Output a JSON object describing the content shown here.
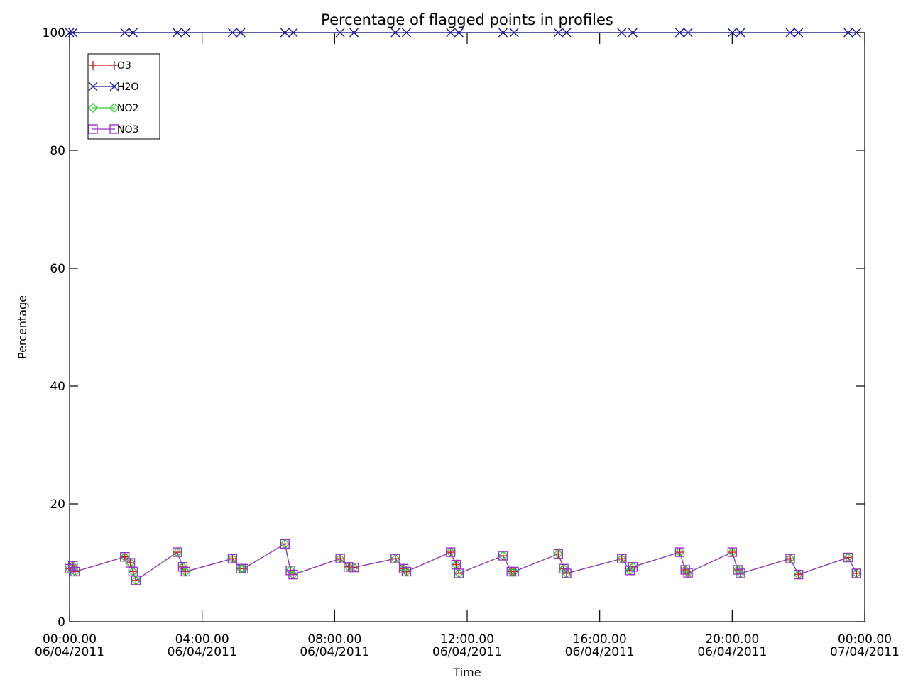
{
  "chart_data": {
    "type": "line",
    "title": "Percentage of flagged points in profiles",
    "xlabel": "Time",
    "ylabel": "Percentage",
    "ylim": [
      0,
      100
    ],
    "xlim": [
      "2011-04-06T00:00:00",
      "2011-04-07T00:00:00"
    ],
    "grid": false,
    "legend_position": "top-left",
    "y_ticks": [
      "0",
      "20",
      "40",
      "60",
      "80",
      "100"
    ],
    "x_ticks": [
      {
        "time": "00:00.00",
        "date": "06/04/2011"
      },
      {
        "time": "04:00.00",
        "date": "06/04/2011"
      },
      {
        "time": "08:00.00",
        "date": "06/04/2011"
      },
      {
        "time": "12:00.00",
        "date": "06/04/2011"
      },
      {
        "time": "16:00.00",
        "date": "06/04/2011"
      },
      {
        "time": "20:00.00",
        "date": "06/04/2011"
      },
      {
        "time": "00:00.00",
        "date": "07/04/2011"
      }
    ],
    "series": [
      {
        "name": "O3",
        "color": "#cc2222",
        "marker": "plus",
        "x": [
          "2011-04-06T00:00",
          "2011-04-06T00:06",
          "2011-04-06T00:10",
          "2011-04-06T01:40",
          "2011-04-06T01:50",
          "2011-04-06T01:55",
          "2011-04-06T02:00",
          "2011-04-06T03:15",
          "2011-04-06T03:25",
          "2011-04-06T03:30",
          "2011-04-06T04:55",
          "2011-04-06T05:10",
          "2011-04-06T05:15",
          "2011-04-06T06:30",
          "2011-04-06T06:40",
          "2011-04-06T06:45",
          "2011-04-06T08:10",
          "2011-04-06T08:25",
          "2011-04-06T08:35",
          "2011-04-06T09:50",
          "2011-04-06T10:05",
          "2011-04-06T10:10",
          "2011-04-06T11:30",
          "2011-04-06T11:40",
          "2011-04-06T11:45",
          "2011-04-06T13:05",
          "2011-04-06T13:20",
          "2011-04-06T13:25",
          "2011-04-06T14:45",
          "2011-04-06T14:55",
          "2011-04-06T15:00",
          "2011-04-06T16:40",
          "2011-04-06T16:55",
          "2011-04-06T17:00",
          "2011-04-06T18:25",
          "2011-04-06T18:35",
          "2011-04-06T18:40",
          "2011-04-06T20:00",
          "2011-04-06T20:10",
          "2011-04-06T20:15",
          "2011-04-06T21:45",
          "2011-04-06T22:00",
          "2011-04-06T23:30",
          "2011-04-06T23:45"
        ],
        "values": [
          9,
          9.5,
          8.5,
          11,
          10,
          8.5,
          7,
          11.8,
          9.3,
          8.5,
          10.7,
          9,
          9,
          13.2,
          8.7,
          8,
          10.7,
          9.3,
          9.2,
          10.7,
          9,
          8.5,
          11.8,
          9.7,
          8.2,
          11.2,
          8.5,
          8.5,
          11.5,
          9,
          8.2,
          10.7,
          8.7,
          9.3,
          11.8,
          8.8,
          8.3,
          11.8,
          8.8,
          8.2,
          10.7,
          8,
          10.9,
          8.2
        ]
      },
      {
        "name": "H2O",
        "color": "#1a1a99",
        "marker": "x",
        "x": [
          "2011-04-06T00:00",
          "2011-04-06T00:06",
          "2011-04-06T01:40",
          "2011-04-06T01:55",
          "2011-04-06T03:15",
          "2011-04-06T03:30",
          "2011-04-06T04:55",
          "2011-04-06T05:10",
          "2011-04-06T06:30",
          "2011-04-06T06:45",
          "2011-04-06T08:10",
          "2011-04-06T08:35",
          "2011-04-06T09:50",
          "2011-04-06T10:10",
          "2011-04-06T11:30",
          "2011-04-06T11:45",
          "2011-04-06T13:05",
          "2011-04-06T13:25",
          "2011-04-06T14:45",
          "2011-04-06T15:00",
          "2011-04-06T16:40",
          "2011-04-06T17:00",
          "2011-04-06T18:25",
          "2011-04-06T18:40",
          "2011-04-06T20:00",
          "2011-04-06T20:15",
          "2011-04-06T21:45",
          "2011-04-06T22:00",
          "2011-04-06T23:30",
          "2011-04-06T23:45"
        ],
        "values": [
          100,
          100,
          100,
          100,
          100,
          100,
          100,
          100,
          100,
          100,
          100,
          100,
          100,
          100,
          100,
          100,
          100,
          100,
          100,
          100,
          100,
          100,
          100,
          100,
          100,
          100,
          100,
          100,
          100,
          100
        ]
      },
      {
        "name": "NO2",
        "color": "#33cc33",
        "marker": "diamond",
        "x": [
          "2011-04-06T00:00",
          "2011-04-06T00:06",
          "2011-04-06T00:10",
          "2011-04-06T01:40",
          "2011-04-06T01:50",
          "2011-04-06T01:55",
          "2011-04-06T02:00",
          "2011-04-06T03:15",
          "2011-04-06T03:25",
          "2011-04-06T03:30",
          "2011-04-06T04:55",
          "2011-04-06T05:10",
          "2011-04-06T05:15",
          "2011-04-06T06:30",
          "2011-04-06T06:40",
          "2011-04-06T06:45",
          "2011-04-06T08:10",
          "2011-04-06T08:25",
          "2011-04-06T08:35",
          "2011-04-06T09:50",
          "2011-04-06T10:05",
          "2011-04-06T10:10",
          "2011-04-06T11:30",
          "2011-04-06T11:40",
          "2011-04-06T11:45",
          "2011-04-06T13:05",
          "2011-04-06T13:20",
          "2011-04-06T13:25",
          "2011-04-06T14:45",
          "2011-04-06T14:55",
          "2011-04-06T15:00",
          "2011-04-06T16:40",
          "2011-04-06T16:55",
          "2011-04-06T17:00",
          "2011-04-06T18:25",
          "2011-04-06T18:35",
          "2011-04-06T18:40",
          "2011-04-06T20:00",
          "2011-04-06T20:10",
          "2011-04-06T20:15",
          "2011-04-06T21:45",
          "2011-04-06T22:00",
          "2011-04-06T23:30",
          "2011-04-06T23:45"
        ],
        "values": [
          9,
          9.5,
          8.5,
          11,
          10,
          8.5,
          7,
          11.8,
          9.3,
          8.5,
          10.7,
          9,
          9,
          13.2,
          8.7,
          8,
          10.7,
          9.3,
          9.2,
          10.7,
          9,
          8.5,
          11.8,
          9.7,
          8.2,
          11.2,
          8.5,
          8.5,
          11.5,
          9,
          8.2,
          10.7,
          8.7,
          9.3,
          11.8,
          8.8,
          8.3,
          11.8,
          8.8,
          8.2,
          10.7,
          8,
          10.9,
          8.2
        ]
      },
      {
        "name": "NO3",
        "color": "#9933cc",
        "marker": "square",
        "x": [
          "2011-04-06T00:00",
          "2011-04-06T00:06",
          "2011-04-06T00:10",
          "2011-04-06T01:40",
          "2011-04-06T01:50",
          "2011-04-06T01:55",
          "2011-04-06T02:00",
          "2011-04-06T03:15",
          "2011-04-06T03:25",
          "2011-04-06T03:30",
          "2011-04-06T04:55",
          "2011-04-06T05:10",
          "2011-04-06T05:15",
          "2011-04-06T06:30",
          "2011-04-06T06:40",
          "2011-04-06T06:45",
          "2011-04-06T08:10",
          "2011-04-06T08:25",
          "2011-04-06T08:35",
          "2011-04-06T09:50",
          "2011-04-06T10:05",
          "2011-04-06T10:10",
          "2011-04-06T11:30",
          "2011-04-06T11:40",
          "2011-04-06T11:45",
          "2011-04-06T13:05",
          "2011-04-06T13:20",
          "2011-04-06T13:25",
          "2011-04-06T14:45",
          "2011-04-06T14:55",
          "2011-04-06T15:00",
          "2011-04-06T16:40",
          "2011-04-06T16:55",
          "2011-04-06T17:00",
          "2011-04-06T18:25",
          "2011-04-06T18:35",
          "2011-04-06T18:40",
          "2011-04-06T20:00",
          "2011-04-06T20:10",
          "2011-04-06T20:15",
          "2011-04-06T21:45",
          "2011-04-06T22:00",
          "2011-04-06T23:30",
          "2011-04-06T23:45"
        ],
        "values": [
          9,
          9.5,
          8.5,
          11,
          10,
          8.5,
          7,
          11.8,
          9.3,
          8.5,
          10.7,
          9,
          9,
          13.2,
          8.7,
          8,
          10.7,
          9.3,
          9.2,
          10.7,
          9,
          8.5,
          11.8,
          9.7,
          8.2,
          11.2,
          8.5,
          8.5,
          11.5,
          9,
          8.2,
          10.7,
          8.7,
          9.3,
          11.8,
          8.8,
          8.3,
          11.8,
          8.8,
          8.2,
          10.7,
          8,
          10.9,
          8.2
        ]
      }
    ]
  }
}
